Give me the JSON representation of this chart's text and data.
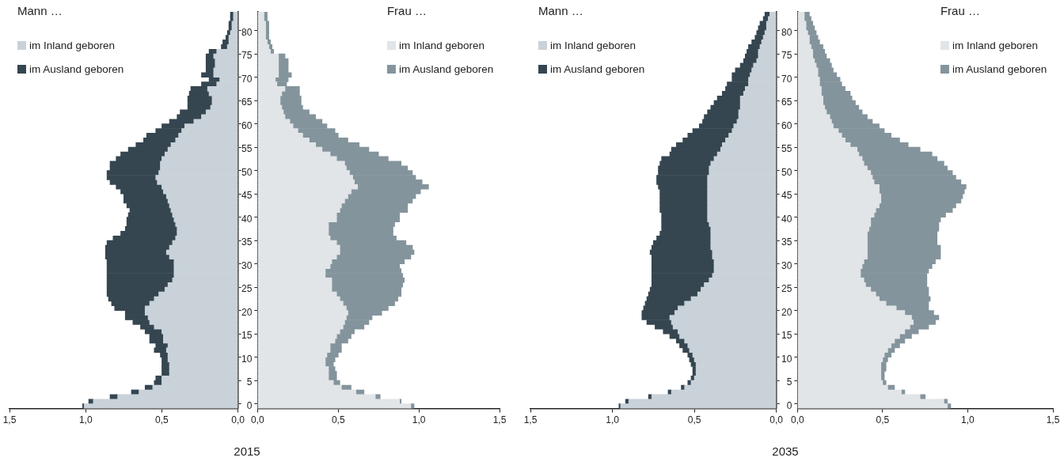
{
  "chart_data": [
    {
      "type": "bar",
      "orientation": "horizontal",
      "stacked": true,
      "title": "Mann …",
      "legend": "top left",
      "tick_labels": "x",
      "grid": false,
      "annotations": [
        "2015"
      ],
      "categories": [
        null,
        null,
        null,
        null,
        "80",
        null,
        null,
        null,
        null,
        "75",
        null,
        null,
        null,
        null,
        "70",
        null,
        null,
        null,
        null,
        "65",
        null,
        null,
        null,
        null,
        "60",
        null,
        null,
        null,
        null,
        "55",
        null,
        null,
        null,
        null,
        "50",
        null,
        null,
        null,
        null,
        "45",
        null,
        null,
        null,
        null,
        "40",
        null,
        null,
        null,
        null,
        "35",
        null,
        null,
        null,
        null,
        "30",
        null,
        null,
        null,
        null,
        "25",
        null,
        null,
        null,
        null,
        "20",
        null,
        null,
        null,
        null,
        "15",
        null,
        null,
        null,
        null,
        "10",
        null,
        null,
        null,
        null,
        "5",
        null,
        null,
        null,
        null,
        "0"
      ],
      "xlim": [
        1.5,
        0
      ],
      "xticks": [
        {
          "value": 1.5,
          "label": "1,5"
        },
        {
          "value": 1,
          "label": "1,0"
        },
        {
          "value": 0.5,
          "label": "0,5"
        },
        {
          "value": 0,
          "label": "0,0"
        }
      ],
      "series": [
        {
          "name": "im Inland geboren",
          "color": "#c9d2d9",
          "values": [
            0.03,
            0.03,
            0.04,
            0.04,
            0.05,
            0.06,
            0.06,
            0.07,
            0.14,
            0.16,
            0.15,
            0.15,
            0.16,
            0.16,
            0.12,
            0.14,
            0.2,
            0.19,
            0.17,
            0.17,
            0.18,
            0.21,
            0.24,
            0.29,
            0.35,
            0.37,
            0.39,
            0.41,
            0.44,
            0.46,
            0.48,
            0.5,
            0.51,
            0.51,
            0.52,
            0.54,
            0.53,
            0.5,
            0.49,
            0.47,
            0.46,
            0.45,
            0.44,
            0.43,
            0.42,
            0.41,
            0.4,
            0.4,
            0.41,
            0.43,
            0.45,
            0.47,
            0.45,
            0.42,
            0.42,
            0.42,
            0.42,
            0.43,
            0.46,
            0.48,
            0.52,
            0.55,
            0.58,
            0.61,
            0.61,
            0.59,
            0.58,
            0.55,
            0.5,
            0.49,
            0.49,
            0.46,
            0.47,
            0.46,
            0.46,
            0.45,
            0.45,
            0.45,
            0.5,
            0.5,
            0.56,
            0.65,
            0.79,
            0.95,
            1.01
          ]
        },
        {
          "name": "im Ausland geboren",
          "color": "#354651",
          "values": [
            0.02,
            0.02,
            0.02,
            0.02,
            0.02,
            0.02,
            0.04,
            0.04,
            0.05,
            0.05,
            0.06,
            0.06,
            0.05,
            0.08,
            0.07,
            0.1,
            0.11,
            0.13,
            0.16,
            0.16,
            0.15,
            0.17,
            0.16,
            0.16,
            0.15,
            0.17,
            0.21,
            0.21,
            0.23,
            0.26,
            0.29,
            0.3,
            0.33,
            0.33,
            0.34,
            0.32,
            0.31,
            0.3,
            0.28,
            0.28,
            0.29,
            0.28,
            0.27,
            0.29,
            0.31,
            0.32,
            0.34,
            0.37,
            0.41,
            0.43,
            0.42,
            0.4,
            0.42,
            0.44,
            0.44,
            0.44,
            0.44,
            0.43,
            0.4,
            0.38,
            0.34,
            0.3,
            0.25,
            0.2,
            0.13,
            0.15,
            0.11,
            0.09,
            0.11,
            0.09,
            0.09,
            0.08,
            0.08,
            0.05,
            0.04,
            0.05,
            0.05,
            0.05,
            0.04,
            0.05,
            0.05,
            0.05,
            0.05,
            0.03,
            0.01
          ]
        }
      ]
    },
    {
      "type": "bar",
      "orientation": "horizontal",
      "stacked": true,
      "title": "Frau …",
      "legend": "top right",
      "grid": false,
      "categories": [
        null,
        null,
        null,
        null,
        "80",
        null,
        null,
        null,
        null,
        "75",
        null,
        null,
        null,
        null,
        "70",
        null,
        null,
        null,
        null,
        "65",
        null,
        null,
        null,
        null,
        "60",
        null,
        null,
        null,
        null,
        "55",
        null,
        null,
        null,
        null,
        "50",
        null,
        null,
        null,
        null,
        "45",
        null,
        null,
        null,
        null,
        "40",
        null,
        null,
        null,
        null,
        "35",
        null,
        null,
        null,
        null,
        "30",
        null,
        null,
        null,
        null,
        "25",
        null,
        null,
        null,
        null,
        "20",
        null,
        null,
        null,
        null,
        "15",
        null,
        null,
        null,
        null,
        "10",
        null,
        null,
        null,
        null,
        "5",
        null,
        null,
        null,
        null,
        "0"
      ],
      "xlim": [
        0,
        1.5
      ],
      "xticks": [
        {
          "value": 0,
          "label": "0,0"
        },
        {
          "value": 0.5,
          "label": "0,5"
        },
        {
          "value": 1,
          "label": "1,0"
        },
        {
          "value": 1.5,
          "label": "1,5"
        }
      ],
      "series": [
        {
          "name": "im Inland geboren",
          "color": "#e1e5e8",
          "values": [
            0.04,
            0.04,
            0.05,
            0.05,
            0.05,
            0.05,
            0.06,
            0.07,
            0.08,
            0.13,
            0.13,
            0.13,
            0.13,
            0.13,
            0.11,
            0.12,
            0.17,
            0.15,
            0.14,
            0.14,
            0.15,
            0.16,
            0.17,
            0.2,
            0.22,
            0.25,
            0.28,
            0.32,
            0.36,
            0.4,
            0.45,
            0.49,
            0.54,
            0.55,
            0.57,
            0.59,
            0.6,
            0.62,
            0.58,
            0.56,
            0.54,
            0.52,
            0.51,
            0.49,
            0.49,
            0.44,
            0.44,
            0.44,
            0.45,
            0.49,
            0.51,
            0.51,
            0.49,
            0.46,
            0.45,
            0.42,
            0.42,
            0.46,
            0.46,
            0.46,
            0.49,
            0.51,
            0.53,
            0.55,
            0.56,
            0.55,
            0.54,
            0.53,
            0.51,
            0.49,
            0.48,
            0.45,
            0.45,
            0.43,
            0.42,
            0.42,
            0.44,
            0.44,
            0.44,
            0.47,
            0.52,
            0.61,
            0.73,
            0.88,
            0.95
          ]
        },
        {
          "name": "im Ausland geboren",
          "color": "#84949c",
          "values": [
            0.02,
            0.02,
            0.02,
            0.02,
            0.02,
            0.02,
            0.02,
            0.02,
            0.02,
            0.04,
            0.06,
            0.06,
            0.06,
            0.08,
            0.08,
            0.06,
            0.09,
            0.11,
            0.13,
            0.13,
            0.13,
            0.16,
            0.19,
            0.2,
            0.21,
            0.23,
            0.22,
            0.24,
            0.27,
            0.29,
            0.3,
            0.32,
            0.35,
            0.38,
            0.39,
            0.39,
            0.42,
            0.44,
            0.43,
            0.42,
            0.42,
            0.41,
            0.42,
            0.39,
            0.39,
            0.41,
            0.4,
            0.4,
            0.41,
            0.43,
            0.45,
            0.46,
            0.46,
            0.45,
            0.43,
            0.47,
            0.48,
            0.45,
            0.44,
            0.43,
            0.4,
            0.36,
            0.32,
            0.26,
            0.21,
            0.16,
            0.15,
            0.13,
            0.09,
            0.09,
            0.08,
            0.07,
            0.07,
            0.07,
            0.06,
            0.05,
            0.04,
            0.05,
            0.05,
            0.04,
            0.06,
            0.05,
            0.03,
            0.01,
            0.02
          ]
        }
      ]
    },
    {
      "type": "bar",
      "orientation": "horizontal",
      "stacked": true,
      "title": "Mann …",
      "legend": "top left",
      "tick_labels": "x",
      "grid": false,
      "annotations": [
        "2035"
      ],
      "categories": [
        null,
        null,
        null,
        null,
        "80",
        null,
        null,
        null,
        null,
        "75",
        null,
        null,
        null,
        null,
        "70",
        null,
        null,
        null,
        null,
        "65",
        null,
        null,
        null,
        null,
        "60",
        null,
        null,
        null,
        null,
        "55",
        null,
        null,
        null,
        null,
        "50",
        null,
        null,
        null,
        null,
        "45",
        null,
        null,
        null,
        null,
        "40",
        null,
        null,
        null,
        null,
        "35",
        null,
        null,
        null,
        null,
        "30",
        null,
        null,
        null,
        null,
        "25",
        null,
        null,
        null,
        null,
        "20",
        null,
        null,
        null,
        null,
        "15",
        null,
        null,
        null,
        null,
        "10",
        null,
        null,
        null,
        null,
        "5",
        null,
        null,
        null,
        null,
        "0"
      ],
      "xlim": [
        1.5,
        0
      ],
      "xticks": [
        {
          "value": 1.5,
          "label": "1,5"
        },
        {
          "value": 1,
          "label": "1,0"
        },
        {
          "value": 0.5,
          "label": "0,5"
        },
        {
          "value": 0,
          "label": "0,0"
        }
      ],
      "series": [
        {
          "name": "im Inland geboren",
          "color": "#c9d2d9",
          "values": [
            0.04,
            0.05,
            0.06,
            0.06,
            0.07,
            0.08,
            0.09,
            0.1,
            0.11,
            0.11,
            0.12,
            0.14,
            0.15,
            0.16,
            0.17,
            0.17,
            0.19,
            0.2,
            0.22,
            0.22,
            0.22,
            0.23,
            0.23,
            0.24,
            0.26,
            0.27,
            0.29,
            0.31,
            0.33,
            0.34,
            0.36,
            0.38,
            0.4,
            0.41,
            0.41,
            0.42,
            0.42,
            0.42,
            0.42,
            0.42,
            0.42,
            0.42,
            0.42,
            0.42,
            0.42,
            0.41,
            0.4,
            0.4,
            0.4,
            0.4,
            0.4,
            0.39,
            0.39,
            0.38,
            0.38,
            0.38,
            0.39,
            0.41,
            0.44,
            0.46,
            0.48,
            0.52,
            0.56,
            0.6,
            0.62,
            0.65,
            0.64,
            0.63,
            0.6,
            0.59,
            0.56,
            0.54,
            0.53,
            0.51,
            0.5,
            0.49,
            0.49,
            0.49,
            0.5,
            0.52,
            0.56,
            0.64,
            0.76,
            0.9,
            0.95
          ]
        },
        {
          "name": "im Ausland geboren",
          "color": "#354651",
          "values": [
            0.03,
            0.03,
            0.04,
            0.05,
            0.05,
            0.05,
            0.06,
            0.07,
            0.07,
            0.08,
            0.08,
            0.08,
            0.1,
            0.11,
            0.1,
            0.13,
            0.12,
            0.13,
            0.14,
            0.16,
            0.18,
            0.19,
            0.21,
            0.21,
            0.21,
            0.24,
            0.25,
            0.26,
            0.28,
            0.3,
            0.29,
            0.32,
            0.31,
            0.31,
            0.31,
            0.31,
            0.31,
            0.3,
            0.29,
            0.29,
            0.29,
            0.29,
            0.29,
            0.28,
            0.28,
            0.29,
            0.3,
            0.31,
            0.33,
            0.35,
            0.36,
            0.38,
            0.37,
            0.38,
            0.38,
            0.38,
            0.37,
            0.35,
            0.32,
            0.31,
            0.3,
            0.27,
            0.24,
            0.21,
            0.2,
            0.17,
            0.15,
            0.11,
            0.09,
            0.06,
            0.05,
            0.05,
            0.04,
            0.03,
            0.03,
            0.03,
            0.02,
            0.02,
            0.02,
            0.02,
            0.02,
            0.02,
            0.02,
            0.02,
            0.01
          ]
        }
      ]
    },
    {
      "type": "bar",
      "orientation": "horizontal",
      "stacked": true,
      "title": "Frau …",
      "legend": "top right",
      "grid": false,
      "categories": [
        null,
        null,
        null,
        null,
        "80",
        null,
        null,
        null,
        null,
        "75",
        null,
        null,
        null,
        null,
        "70",
        null,
        null,
        null,
        null,
        "65",
        null,
        null,
        null,
        null,
        "60",
        null,
        null,
        null,
        null,
        "55",
        null,
        null,
        null,
        null,
        "50",
        null,
        null,
        null,
        null,
        "45",
        null,
        null,
        null,
        null,
        "40",
        null,
        null,
        null,
        null,
        "35",
        null,
        null,
        null,
        null,
        "30",
        null,
        null,
        null,
        null,
        "25",
        null,
        null,
        null,
        null,
        "20",
        null,
        null,
        null,
        null,
        "15",
        null,
        null,
        null,
        null,
        "10",
        null,
        null,
        null,
        null,
        "5",
        null,
        null,
        null,
        null,
        "0"
      ],
      "xlim": [
        0,
        1.5
      ],
      "xticks": [
        {
          "value": 0,
          "label": "0,0"
        },
        {
          "value": 0.5,
          "label": "0,5"
        },
        {
          "value": 1,
          "label": "1,0"
        },
        {
          "value": 1.5,
          "label": "1,5"
        }
      ],
      "series": [
        {
          "name": "im Inland geboren",
          "color": "#e1e5e8",
          "values": [
            0.04,
            0.04,
            0.05,
            0.05,
            0.06,
            0.07,
            0.07,
            0.08,
            0.09,
            0.09,
            0.1,
            0.11,
            0.12,
            0.12,
            0.13,
            0.13,
            0.14,
            0.14,
            0.15,
            0.15,
            0.16,
            0.17,
            0.19,
            0.2,
            0.21,
            0.24,
            0.26,
            0.28,
            0.31,
            0.35,
            0.36,
            0.38,
            0.39,
            0.41,
            0.43,
            0.44,
            0.45,
            0.48,
            0.48,
            0.49,
            0.49,
            0.48,
            0.46,
            0.45,
            0.43,
            0.43,
            0.42,
            0.41,
            0.41,
            0.41,
            0.41,
            0.41,
            0.41,
            0.39,
            0.38,
            0.37,
            0.37,
            0.39,
            0.4,
            0.43,
            0.46,
            0.48,
            0.52,
            0.58,
            0.63,
            0.67,
            0.68,
            0.66,
            0.63,
            0.6,
            0.57,
            0.55,
            0.53,
            0.51,
            0.5,
            0.49,
            0.49,
            0.49,
            0.49,
            0.5,
            0.53,
            0.61,
            0.72,
            0.86,
            0.88
          ]
        },
        {
          "name": "im Ausland geboren",
          "color": "#84949c",
          "values": [
            0.03,
            0.04,
            0.04,
            0.05,
            0.05,
            0.05,
            0.06,
            0.07,
            0.07,
            0.08,
            0.09,
            0.09,
            0.09,
            0.11,
            0.12,
            0.13,
            0.14,
            0.17,
            0.17,
            0.19,
            0.2,
            0.21,
            0.22,
            0.24,
            0.27,
            0.27,
            0.29,
            0.32,
            0.34,
            0.37,
            0.43,
            0.44,
            0.47,
            0.47,
            0.48,
            0.49,
            0.51,
            0.51,
            0.5,
            0.48,
            0.47,
            0.45,
            0.45,
            0.42,
            0.41,
            0.4,
            0.41,
            0.41,
            0.41,
            0.41,
            0.43,
            0.43,
            0.43,
            0.42,
            0.41,
            0.4,
            0.39,
            0.37,
            0.36,
            0.34,
            0.31,
            0.3,
            0.25,
            0.19,
            0.17,
            0.16,
            0.13,
            0.11,
            0.08,
            0.07,
            0.06,
            0.05,
            0.04,
            0.04,
            0.03,
            0.03,
            0.03,
            0.02,
            0.02,
            0.02,
            0.04,
            0.02,
            0.03,
            0.02,
            0.02
          ]
        }
      ]
    }
  ]
}
